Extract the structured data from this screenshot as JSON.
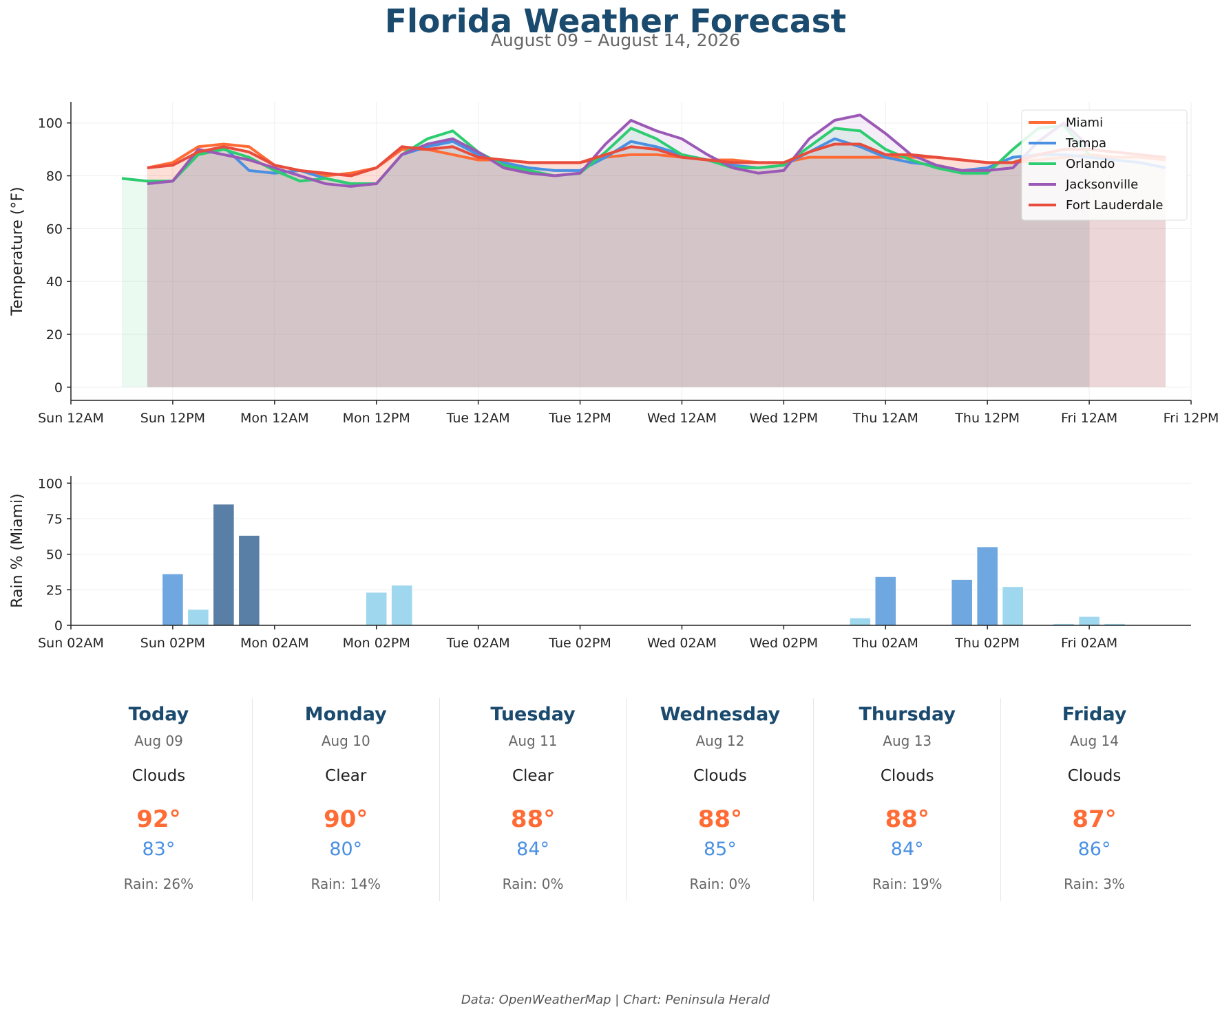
{
  "title": "Florida Weather Forecast",
  "subtitle": "August 09 – August 14, 2026",
  "footer": "Data: OpenWeatherMap | Chart: Peninsula Herald",
  "colors": {
    "title": "#1a4a6e",
    "Miami": "#ff6b35",
    "Tampa": "#4a90e2",
    "Orlando": "#2ecc71",
    "Jacksonville": "#9b59b6",
    "Fort Lauderdale": "#e74c3c",
    "rain_light": "#9fd8ee",
    "rain_mid": "#6fa8e0",
    "rain_heavy": "#5a7fa6"
  },
  "chart_data": [
    {
      "type": "line",
      "ylabel": "Temperature (°F)",
      "ylim": [
        -5,
        108
      ],
      "yticks": [
        0,
        20,
        40,
        60,
        80,
        100
      ],
      "xlim": [
        0,
        132
      ],
      "x_unit": "hours since Sun 12AM",
      "xticks": [
        {
          "h": 0,
          "label": "Sun 12AM"
        },
        {
          "h": 12,
          "label": "Sun 12PM"
        },
        {
          "h": 24,
          "label": "Mon 12AM"
        },
        {
          "h": 36,
          "label": "Mon 12PM"
        },
        {
          "h": 48,
          "label": "Tue 12AM"
        },
        {
          "h": 60,
          "label": "Tue 12PM"
        },
        {
          "h": 72,
          "label": "Wed 12AM"
        },
        {
          "h": 84,
          "label": "Wed 12PM"
        },
        {
          "h": 96,
          "label": "Thu 12AM"
        },
        {
          "h": 108,
          "label": "Thu 12PM"
        },
        {
          "h": 120,
          "label": "Fri 12AM"
        },
        {
          "h": 132,
          "label": "Fri 12PM"
        }
      ],
      "grid": true,
      "legend": "top-right",
      "series": [
        {
          "name": "Miami",
          "x": [
            9,
            12,
            15,
            18,
            21,
            24,
            27,
            30,
            33,
            36,
            39,
            42,
            45,
            48,
            51,
            54,
            57,
            60,
            63,
            66,
            69,
            72,
            75,
            78,
            81,
            84,
            87,
            90,
            93,
            96,
            99,
            102,
            105,
            108,
            111,
            114,
            117,
            120,
            123,
            126,
            129
          ],
          "y": [
            83,
            85,
            91,
            92,
            91,
            84,
            82,
            80,
            81,
            83,
            90,
            90,
            88,
            86,
            86,
            85,
            85,
            85,
            87,
            88,
            88,
            87,
            86,
            86,
            85,
            85,
            87,
            87,
            87,
            87,
            87,
            87,
            86,
            85,
            85,
            86,
            87,
            88,
            87,
            87,
            86
          ]
        },
        {
          "name": "Tampa",
          "x": [
            9,
            12,
            15,
            18,
            21,
            24,
            27,
            30,
            33,
            36,
            39,
            42,
            45,
            48,
            51,
            54,
            57,
            60,
            63,
            66,
            69,
            72,
            75,
            78,
            81,
            84,
            87,
            90,
            93,
            96,
            99,
            102,
            105,
            108,
            111,
            114,
            117,
            120,
            123,
            126,
            129
          ],
          "y": [
            77,
            78,
            89,
            91,
            82,
            81,
            82,
            79,
            77,
            77,
            88,
            91,
            93,
            88,
            85,
            83,
            82,
            82,
            87,
            93,
            91,
            88,
            86,
            84,
            83,
            84,
            89,
            94,
            91,
            87,
            85,
            84,
            82,
            83,
            87,
            88,
            88,
            87,
            86,
            85,
            83
          ]
        },
        {
          "name": "Orlando",
          "x": [
            6,
            9,
            12,
            15,
            18,
            21,
            24,
            27,
            30,
            33,
            36,
            39,
            42,
            45,
            48,
            51,
            54,
            57,
            60,
            63,
            66,
            69,
            72,
            75,
            78,
            81,
            84,
            87,
            90,
            93,
            96,
            99,
            102,
            105,
            108,
            111,
            114,
            117,
            120
          ],
          "y": [
            79,
            78,
            78,
            88,
            90,
            87,
            82,
            78,
            79,
            77,
            77,
            88,
            94,
            97,
            89,
            84,
            82,
            80,
            81,
            89,
            98,
            94,
            88,
            86,
            83,
            83,
            84,
            91,
            98,
            97,
            90,
            86,
            83,
            81,
            81,
            90,
            98,
            99,
            88
          ]
        },
        {
          "name": "Jacksonville",
          "x": [
            9,
            12,
            15,
            18,
            21,
            24,
            27,
            30,
            33,
            36,
            39,
            42,
            45,
            48,
            51,
            54,
            57,
            60,
            63,
            66,
            69,
            72,
            75,
            78,
            81,
            84,
            87,
            90,
            93,
            96,
            99,
            102,
            105,
            108,
            111,
            114,
            117,
            120
          ],
          "y": [
            77,
            78,
            90,
            88,
            86,
            83,
            80,
            77,
            76,
            77,
            88,
            92,
            94,
            89,
            83,
            81,
            80,
            81,
            92,
            101,
            97,
            94,
            88,
            83,
            81,
            82,
            94,
            101,
            103,
            96,
            88,
            84,
            82,
            82,
            83,
            93,
            100,
            91
          ]
        },
        {
          "name": "Fort Lauderdale",
          "x": [
            9,
            12,
            15,
            18,
            21,
            24,
            27,
            30,
            33,
            36,
            39,
            42,
            45,
            48,
            51,
            54,
            57,
            60,
            63,
            66,
            69,
            72,
            75,
            78,
            81,
            84,
            87,
            90,
            93,
            96,
            99,
            102,
            105,
            108,
            111,
            114,
            117,
            120,
            123,
            126,
            129
          ],
          "y": [
            83,
            84,
            89,
            91,
            89,
            84,
            82,
            81,
            80,
            83,
            91,
            90,
            91,
            87,
            86,
            85,
            85,
            85,
            88,
            91,
            90,
            87,
            86,
            85,
            85,
            85,
            89,
            92,
            92,
            88,
            88,
            87,
            86,
            85,
            85,
            88,
            90,
            90,
            89,
            88,
            87
          ]
        }
      ]
    },
    {
      "type": "bar",
      "ylabel": "Rain % (Miami)",
      "ylim": [
        0,
        105
      ],
      "yticks": [
        0,
        25,
        50,
        75,
        100
      ],
      "xlim": [
        2,
        134
      ],
      "x_unit": "hours since Sun 12AM",
      "xticks": [
        {
          "h": 2,
          "label": "Sun 02AM"
        },
        {
          "h": 14,
          "label": "Sun 02PM"
        },
        {
          "h": 26,
          "label": "Mon 02AM"
        },
        {
          "h": 38,
          "label": "Mon 02PM"
        },
        {
          "h": 50,
          "label": "Tue 02AM"
        },
        {
          "h": 62,
          "label": "Tue 02PM"
        },
        {
          "h": 74,
          "label": "Wed 02AM"
        },
        {
          "h": 86,
          "label": "Wed 02PM"
        },
        {
          "h": 98,
          "label": "Thu 02AM"
        },
        {
          "h": 110,
          "label": "Thu 02PM"
        },
        {
          "h": 122,
          "label": "Fri 02AM"
        }
      ],
      "grid": true,
      "bars": [
        {
          "h": 14,
          "value": 36,
          "level": "mid"
        },
        {
          "h": 17,
          "value": 11,
          "level": "light"
        },
        {
          "h": 20,
          "value": 85,
          "level": "heavy"
        },
        {
          "h": 23,
          "value": 63,
          "level": "heavy"
        },
        {
          "h": 38,
          "value": 23,
          "level": "light"
        },
        {
          "h": 41,
          "value": 28,
          "level": "light"
        },
        {
          "h": 95,
          "value": 5,
          "level": "light"
        },
        {
          "h": 98,
          "value": 34,
          "level": "mid"
        },
        {
          "h": 107,
          "value": 32,
          "level": "mid"
        },
        {
          "h": 110,
          "value": 55,
          "level": "mid"
        },
        {
          "h": 113,
          "value": 27,
          "level": "light"
        },
        {
          "h": 119,
          "value": 1,
          "level": "light"
        },
        {
          "h": 122,
          "value": 6,
          "level": "light"
        },
        {
          "h": 125,
          "value": 1,
          "level": "light"
        }
      ]
    }
  ],
  "daily": [
    {
      "day": "Today",
      "date": "Aug 09",
      "condition": "Clouds",
      "high": "92°",
      "low": "83°",
      "rain": "Rain: 26%"
    },
    {
      "day": "Monday",
      "date": "Aug 10",
      "condition": "Clear",
      "high": "90°",
      "low": "80°",
      "rain": "Rain: 14%"
    },
    {
      "day": "Tuesday",
      "date": "Aug 11",
      "condition": "Clear",
      "high": "88°",
      "low": "84°",
      "rain": "Rain: 0%"
    },
    {
      "day": "Wednesday",
      "date": "Aug 12",
      "condition": "Clouds",
      "high": "88°",
      "low": "85°",
      "rain": "Rain: 0%"
    },
    {
      "day": "Thursday",
      "date": "Aug 13",
      "condition": "Clouds",
      "high": "88°",
      "low": "84°",
      "rain": "Rain: 19%"
    },
    {
      "day": "Friday",
      "date": "Aug 14",
      "condition": "Clouds",
      "high": "87°",
      "low": "86°",
      "rain": "Rain: 3%"
    }
  ]
}
